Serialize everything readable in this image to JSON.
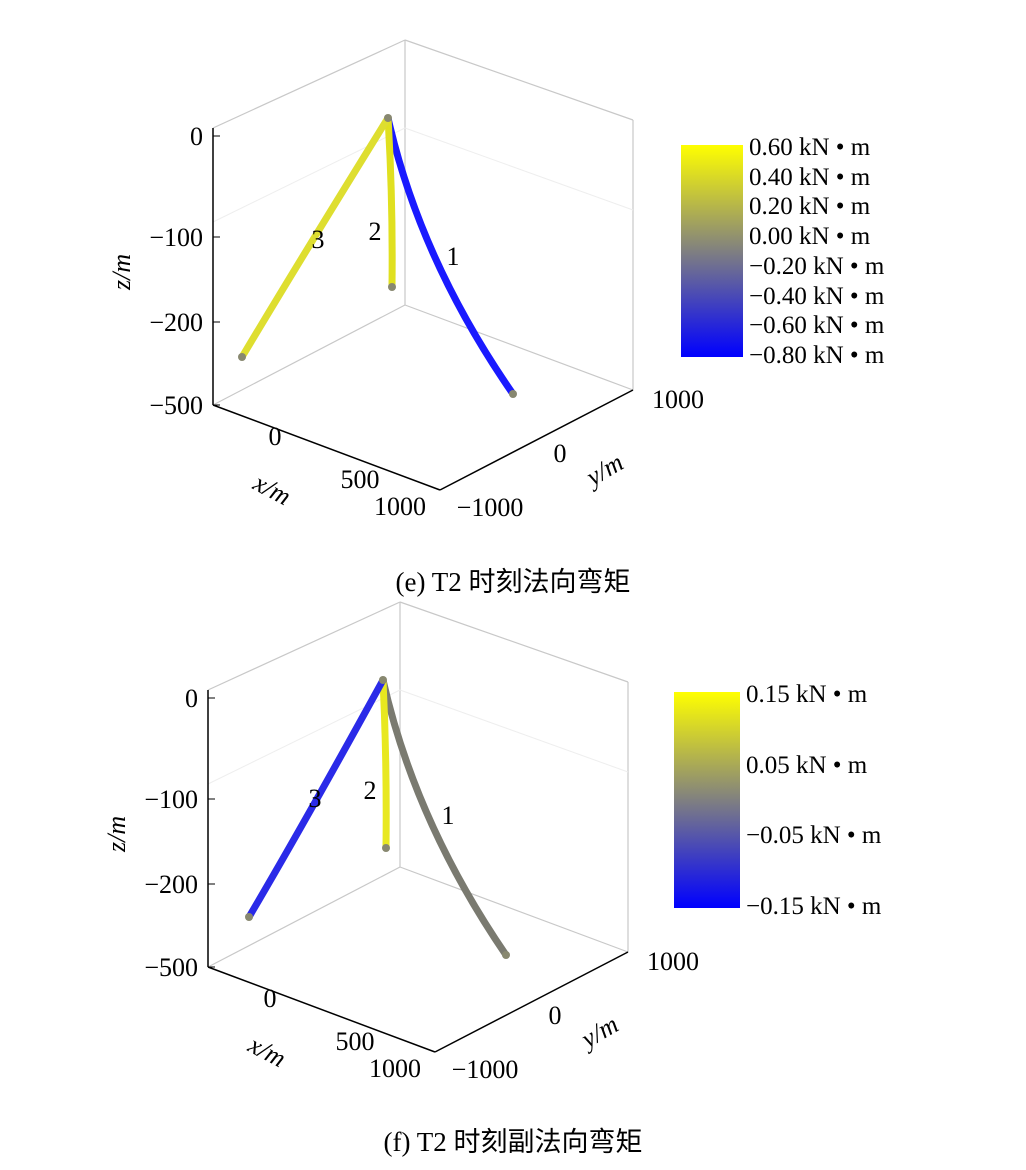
{
  "chart_data": [
    {
      "type": "line3d",
      "caption": "(e) T2 时刻法向弯矩",
      "xlabel": "x/m",
      "ylabel": "y/m",
      "zlabel": "z/m",
      "xticks": [
        "0",
        "500",
        "1000"
      ],
      "yticks": [
        "−1000",
        "0",
        "1000"
      ],
      "zticks": [
        "0",
        "−100",
        "−200",
        "−500"
      ],
      "series": [
        {
          "name": "1",
          "color": "#1a1aff"
        },
        {
          "name": "2",
          "color": "#e0e020"
        },
        {
          "name": "3",
          "color": "#dede30"
        }
      ],
      "colorbar": {
        "labels": [
          "0.60 kN • m",
          "0.40 kN • m",
          "0.20 kN • m",
          "0.00 kN • m",
          "−0.20 kN • m",
          "−0.40 kN • m",
          "−0.60 kN • m",
          "−0.80 kN • m"
        ],
        "colors": [
          "#ffff00",
          "#808080",
          "#0000ff"
        ]
      }
    },
    {
      "type": "line3d",
      "caption": "(f) T2 时刻副法向弯矩",
      "xlabel": "x/m",
      "ylabel": "y/m",
      "zlabel": "z/m",
      "xticks": [
        "0",
        "500",
        "1000"
      ],
      "yticks": [
        "−1000",
        "0",
        "1000"
      ],
      "zticks": [
        "0",
        "−100",
        "−200",
        "−500"
      ],
      "series": [
        {
          "name": "1",
          "color": "#7a7a70"
        },
        {
          "name": "2",
          "color": "#e8e820"
        },
        {
          "name": "3",
          "color": "#2a2ae8"
        }
      ],
      "colorbar": {
        "labels": [
          "0.15 kN • m",
          "0.05 kN • m",
          "−0.05 kN • m",
          "−0.15 kN • m"
        ],
        "colors": [
          "#ffff00",
          "#808080",
          "#0000ff"
        ]
      }
    }
  ]
}
